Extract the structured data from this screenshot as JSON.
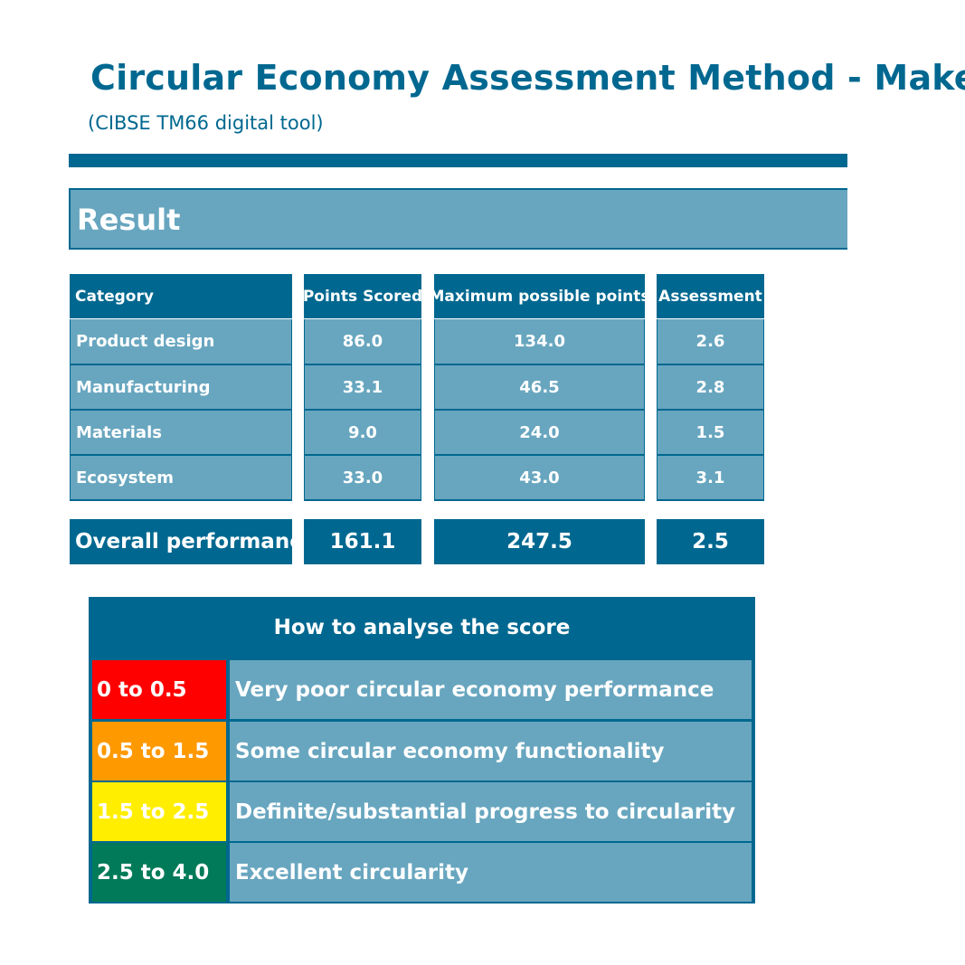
{
  "header": {
    "title": "Circular Economy Assessment Method - Make",
    "subtitle": "(CIBSE TM66 digital tool)"
  },
  "result": {
    "heading": "Result",
    "columns": [
      "Category",
      "Points Scored",
      "Maximum possible points",
      "Assessment"
    ],
    "rows": [
      {
        "category": "Product design",
        "points": "86.0",
        "max": "134.0",
        "assessment": "2.6"
      },
      {
        "category": "Manufacturing",
        "points": "33.1",
        "max": "46.5",
        "assessment": "2.8"
      },
      {
        "category": "Materials",
        "points": "9.0",
        "max": "24.0",
        "assessment": "1.5"
      },
      {
        "category": "Ecosystem",
        "points": "33.0",
        "max": "43.0",
        "assessment": "3.1"
      }
    ],
    "total": {
      "label": "Overall performance",
      "points": "161.1",
      "max": "247.5",
      "assessment": "2.5"
    }
  },
  "score_guide": {
    "title": "How to analyse the score",
    "bands": [
      {
        "range": "0 to 0.5",
        "description": "Very poor circular economy performance",
        "color": "#ff0000"
      },
      {
        "range": "0.5 to 1.5",
        "description": "Some circular economy functionality",
        "color": "#ff9900"
      },
      {
        "range": "1.5 to 2.5",
        "description": "Definite/substantial progress to circularity",
        "color": "#ffee00"
      },
      {
        "range": "2.5 to 4.0",
        "description": "Excellent circularity",
        "color": "#007a58"
      }
    ]
  }
}
